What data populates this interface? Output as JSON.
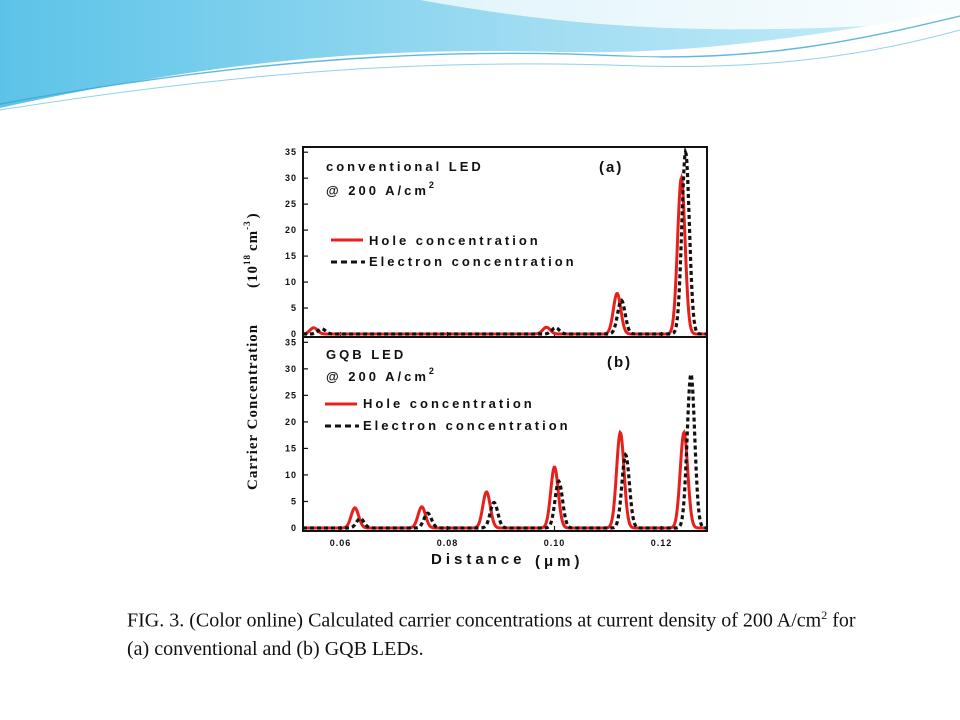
{
  "caption": {
    "part1": "FIG. 3.  (Color online) Calculated carrier concentrations at current density of 200 A/cm",
    "sup": "2",
    "part2": " for (a) conventional and (b) GQB LEDs."
  },
  "colors": {
    "hole": "#e8201c",
    "electron": "#111111",
    "banner_light": "#d4f0fa",
    "banner_dark": "#4fb8e0"
  },
  "chart_data": {
    "type": "line",
    "xlabel": "Distance",
    "xunit": "(μm)",
    "ylabel": "Carrier Concentration",
    "yunit_main": "(10",
    "yunit_exp": "18",
    "yunit_tail": "cm",
    "yunit_tail_exp": "-3",
    "yunit_close": ")",
    "xlim": [
      0.053,
      0.1285
    ],
    "x_ticks": [
      "0.06",
      "0.08",
      "0.10",
      "0.12"
    ],
    "x_tick_values": [
      0.06,
      0.08,
      0.1,
      0.12
    ],
    "y_ticks": [
      "0",
      "5",
      "10",
      "15",
      "20",
      "25",
      "30",
      "35"
    ],
    "y_tick_values": [
      0,
      5,
      10,
      15,
      20,
      25,
      30,
      35
    ],
    "panels": [
      {
        "id": "a",
        "tag": "(a)",
        "title": "conventional LED",
        "condition": "@ 200 A/cm",
        "condition_sup": "2",
        "ylim": [
          0,
          36
        ],
        "series": [
          {
            "name": "Hole concentration",
            "style": "solid",
            "peaks": [
              [
                0.055,
                1.2
              ],
              [
                0.0985,
                1.3
              ],
              [
                0.1117,
                7.8
              ],
              [
                0.1237,
                30.0
              ]
            ]
          },
          {
            "name": "Electron concentration",
            "style": "dashed",
            "peaks": [
              [
                0.0565,
                1.0
              ],
              [
                0.1002,
                1.2
              ],
              [
                0.1125,
                6.5
              ],
              [
                0.1245,
                35.0
              ]
            ]
          }
        ]
      },
      {
        "id": "b",
        "tag": "(b)",
        "title": "GQB LED",
        "condition": "@ 200 A/cm",
        "condition_sup": "2",
        "ylim": [
          0,
          36
        ],
        "series": [
          {
            "name": "Hole concentration",
            "style": "solid",
            "peaks": [
              [
                0.0627,
                3.8
              ],
              [
                0.0752,
                4.0
              ],
              [
                0.0873,
                6.8
              ],
              [
                0.1,
                11.5
              ],
              [
                0.1123,
                18.0
              ],
              [
                0.1242,
                18.0
              ]
            ]
          },
          {
            "name": "Electron concentration",
            "style": "dashed",
            "peaks": [
              [
                0.0637,
                1.8
              ],
              [
                0.0763,
                2.8
              ],
              [
                0.0887,
                4.8
              ],
              [
                0.1008,
                8.8
              ],
              [
                0.1133,
                13.8
              ],
              [
                0.1255,
                29.0
              ]
            ]
          }
        ]
      }
    ]
  }
}
